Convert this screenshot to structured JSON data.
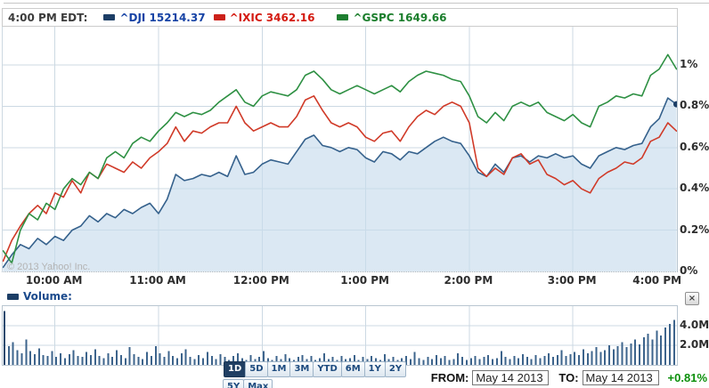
{
  "header": {
    "time_label": "4:00 PM EDT:",
    "series": [
      {
        "symbol": "^DJI",
        "value": "15214.37",
        "text_color": "#1743a5",
        "swatch_color": "#1c3e66"
      },
      {
        "symbol": "^IXIC",
        "value": "3462.16",
        "text_color": "#d41a10",
        "swatch_color": "#cc211a"
      },
      {
        "symbol": "^GSPC",
        "value": "1649.66",
        "text_color": "#1b7e2c",
        "swatch_color": "#1e7e30"
      }
    ]
  },
  "chart": {
    "copyright": "© 2013 Yahoo! Inc."
  },
  "volume_section": {
    "label": "Volume:",
    "close_label": "×",
    "swatch_color": "#1c3e66",
    "label_color": "#1b4a8c"
  },
  "footer": {
    "ranges": [
      {
        "label": "1D",
        "active": true
      },
      {
        "label": "5D",
        "active": false
      },
      {
        "label": "1M",
        "active": false
      },
      {
        "label": "3M",
        "active": false
      },
      {
        "label": "YTD",
        "active": false
      },
      {
        "label": "6M",
        "active": false
      },
      {
        "label": "1Y",
        "active": false
      },
      {
        "label": "2Y",
        "active": false
      },
      {
        "label": "5Y",
        "active": false
      },
      {
        "label": "Max",
        "active": false
      }
    ],
    "from_label": "FROM:",
    "from_value": "May 14 2013",
    "to_label": "TO:",
    "to_value": "May 14 2013",
    "change": "+0.81%",
    "change_color": "#0a8f0a"
  },
  "chart_data": {
    "type": "line",
    "x_axis": {
      "start": "9:30 AM",
      "end": "4:00 PM",
      "interval_minutes": 5,
      "ticks": [
        {
          "label": "10:00 AM",
          "t": 30
        },
        {
          "label": "11:00 AM",
          "t": 90
        },
        {
          "label": "12:00 PM",
          "t": 150
        },
        {
          "label": "1:00 PM",
          "t": 210
        },
        {
          "label": "2:00 PM",
          "t": 270
        },
        {
          "label": "3:00 PM",
          "t": 330
        },
        {
          "label": "4:00 PM",
          "t": 390
        }
      ]
    },
    "y_axis": {
      "unit": "%",
      "min": 0,
      "max": 1.18,
      "ticks": [
        {
          "label": "1%",
          "p": 1.0
        },
        {
          "label": "0.8%",
          "p": 0.8
        },
        {
          "label": "0.6%",
          "p": 0.6
        },
        {
          "label": "0.4%",
          "p": 0.4
        },
        {
          "label": "0.2%",
          "p": 0.2
        },
        {
          "label": "0%",
          "p": 0.0
        }
      ]
    },
    "legend_position": "top",
    "grid": true,
    "style": {
      "grid_color": "#ccd9e3",
      "border_color": "#b9c6d1",
      "baseline_color": "#a6b0b8"
    },
    "series": [
      {
        "name": "^DJI",
        "close_value": 15214.37,
        "close_change_pct": 0.81,
        "color": "#35618c",
        "fill": "rgba(199,219,237,0.65)",
        "marker_end": true,
        "marker_color": "#1c3e66",
        "values": [
          0.02,
          0.08,
          0.13,
          0.11,
          0.16,
          0.13,
          0.17,
          0.15,
          0.2,
          0.22,
          0.27,
          0.24,
          0.28,
          0.26,
          0.3,
          0.28,
          0.31,
          0.33,
          0.28,
          0.35,
          0.47,
          0.44,
          0.45,
          0.47,
          0.46,
          0.48,
          0.46,
          0.56,
          0.47,
          0.48,
          0.52,
          0.54,
          0.53,
          0.52,
          0.58,
          0.64,
          0.66,
          0.61,
          0.6,
          0.58,
          0.6,
          0.59,
          0.55,
          0.53,
          0.58,
          0.57,
          0.54,
          0.58,
          0.57,
          0.6,
          0.63,
          0.65,
          0.63,
          0.62,
          0.56,
          0.48,
          0.46,
          0.52,
          0.48,
          0.55,
          0.56,
          0.53,
          0.56,
          0.55,
          0.57,
          0.55,
          0.56,
          0.52,
          0.5,
          0.56,
          0.58,
          0.6,
          0.59,
          0.61,
          0.62,
          0.7,
          0.74,
          0.84,
          0.81
        ]
      },
      {
        "name": "^IXIC",
        "close_value": 3462.16,
        "color": "#d03a28",
        "values": [
          0.05,
          0.15,
          0.22,
          0.28,
          0.32,
          0.28,
          0.38,
          0.36,
          0.44,
          0.38,
          0.48,
          0.45,
          0.52,
          0.5,
          0.48,
          0.53,
          0.5,
          0.55,
          0.58,
          0.62,
          0.7,
          0.63,
          0.68,
          0.67,
          0.7,
          0.72,
          0.72,
          0.8,
          0.72,
          0.68,
          0.7,
          0.72,
          0.7,
          0.7,
          0.75,
          0.83,
          0.85,
          0.78,
          0.72,
          0.7,
          0.72,
          0.7,
          0.65,
          0.63,
          0.67,
          0.68,
          0.63,
          0.7,
          0.75,
          0.78,
          0.76,
          0.8,
          0.82,
          0.8,
          0.72,
          0.5,
          0.46,
          0.5,
          0.47,
          0.55,
          0.57,
          0.52,
          0.54,
          0.47,
          0.45,
          0.42,
          0.44,
          0.4,
          0.38,
          0.45,
          0.48,
          0.5,
          0.53,
          0.52,
          0.55,
          0.63,
          0.65,
          0.72,
          0.68
        ]
      },
      {
        "name": "^GSPC",
        "close_value": 1649.66,
        "color": "#2e9043",
        "values": [
          0.1,
          0.04,
          0.2,
          0.28,
          0.25,
          0.33,
          0.3,
          0.4,
          0.45,
          0.42,
          0.48,
          0.45,
          0.55,
          0.58,
          0.55,
          0.62,
          0.65,
          0.63,
          0.68,
          0.72,
          0.77,
          0.75,
          0.77,
          0.76,
          0.78,
          0.82,
          0.85,
          0.88,
          0.82,
          0.8,
          0.85,
          0.87,
          0.86,
          0.85,
          0.88,
          0.95,
          0.97,
          0.93,
          0.88,
          0.86,
          0.88,
          0.9,
          0.88,
          0.86,
          0.88,
          0.9,
          0.87,
          0.92,
          0.95,
          0.97,
          0.96,
          0.95,
          0.93,
          0.92,
          0.85,
          0.75,
          0.72,
          0.77,
          0.73,
          0.8,
          0.82,
          0.8,
          0.82,
          0.77,
          0.75,
          0.73,
          0.76,
          0.72,
          0.7,
          0.8,
          0.82,
          0.85,
          0.84,
          0.86,
          0.85,
          0.95,
          0.98,
          1.05,
          0.98
        ]
      }
    ],
    "volume": {
      "unit": "millions",
      "bar_color": "#3d648c",
      "spike_color": "#27496e",
      "ticks": [
        {
          "label": "4.0M",
          "v": 4
        },
        {
          "label": "2.0M",
          "v": 2
        }
      ],
      "values": [
        5.5,
        1.9,
        2.3,
        1.5,
        1.2,
        2.6,
        1.4,
        1.1,
        1.7,
        1.0,
        0.9,
        1.4,
        0.8,
        1.2,
        0.7,
        1.1,
        1.5,
        0.9,
        0.8,
        1.3,
        1.0,
        1.6,
        0.9,
        0.7,
        1.2,
        0.8,
        1.5,
        1.0,
        0.7,
        1.8,
        1.1,
        0.8,
        0.6,
        1.3,
        0.9,
        1.9,
        1.2,
        0.8,
        1.4,
        0.9,
        0.7,
        1.2,
        1.6,
        0.8,
        0.6,
        1.0,
        0.7,
        1.3,
        0.9,
        0.6,
        1.1,
        0.8,
        0.5,
        0.9,
        1.2,
        0.7,
        0.5,
        1.0,
        0.6,
        0.8,
        1.4,
        0.7,
        0.5,
        0.9,
        0.6,
        1.1,
        0.7,
        0.5,
        0.8,
        1.0,
        0.6,
        0.9,
        0.5,
        0.7,
        1.2,
        0.6,
        0.8,
        0.5,
        0.9,
        0.6,
        0.7,
        1.0,
        0.5,
        0.8,
        0.6,
        0.9,
        0.7,
        0.5,
        1.1,
        0.6,
        0.8,
        0.5,
        0.7,
        0.9,
        0.6,
        1.3,
        0.7,
        0.5,
        0.8,
        0.6,
        1.0,
        0.7,
        0.9,
        0.5,
        0.6,
        1.2,
        0.8,
        0.5,
        0.7,
        0.9,
        0.6,
        0.8,
        1.0,
        0.6,
        0.7,
        1.4,
        0.8,
        0.6,
        0.9,
        0.7,
        1.1,
        0.8,
        0.6,
        1.0,
        0.7,
        0.9,
        1.2,
        0.8,
        1.0,
        1.5,
        0.9,
        1.1,
        1.3,
        1.0,
        1.6,
        1.2,
        1.4,
        1.8,
        1.3,
        1.5,
        2.0,
        1.6,
        1.9,
        2.3,
        1.8,
        2.2,
        2.6,
        2.1,
        2.8,
        3.2,
        2.6,
        3.5,
        3.0,
        3.8,
        4.2,
        4.6
      ]
    }
  }
}
